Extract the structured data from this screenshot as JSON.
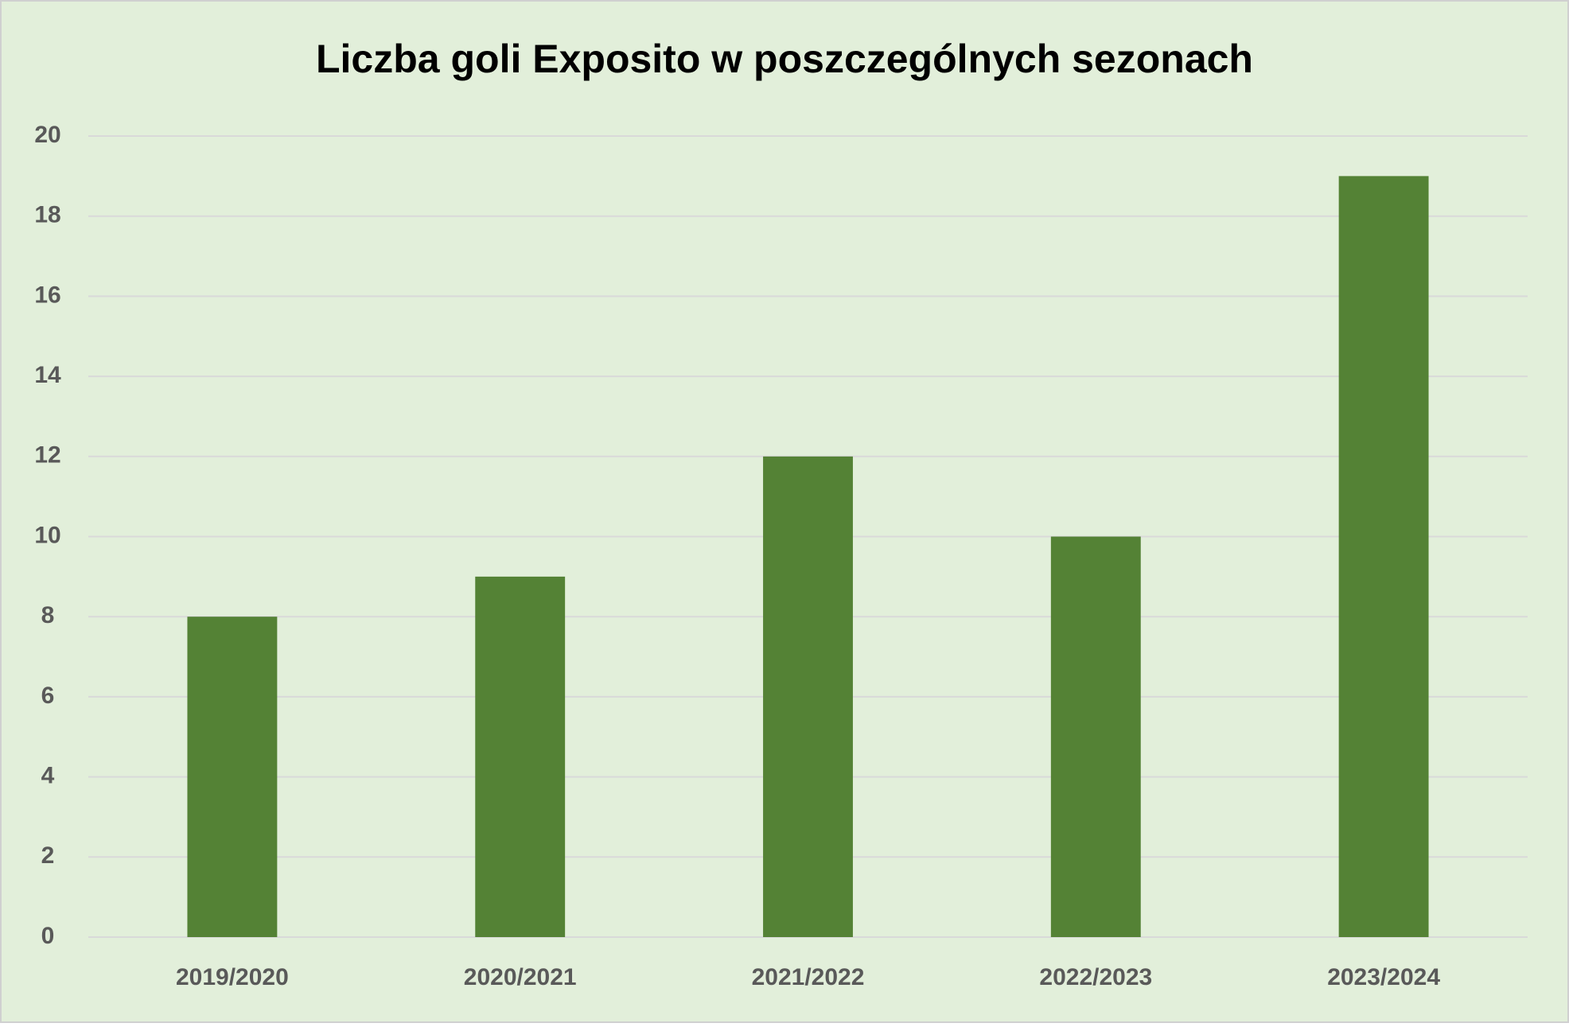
{
  "chart_data": {
    "type": "bar",
    "title": "Liczba goli Exposito w poszczególnych sezonach",
    "categories": [
      "2019/2020",
      "2020/2021",
      "2021/2022",
      "2022/2023",
      "2023/2024"
    ],
    "values": [
      8,
      9,
      12,
      10,
      19
    ],
    "color": "#548235",
    "ylim": [
      0,
      20
    ],
    "yticks": [
      0,
      2,
      4,
      6,
      8,
      10,
      12,
      14,
      16,
      18,
      20
    ],
    "grid": true
  }
}
